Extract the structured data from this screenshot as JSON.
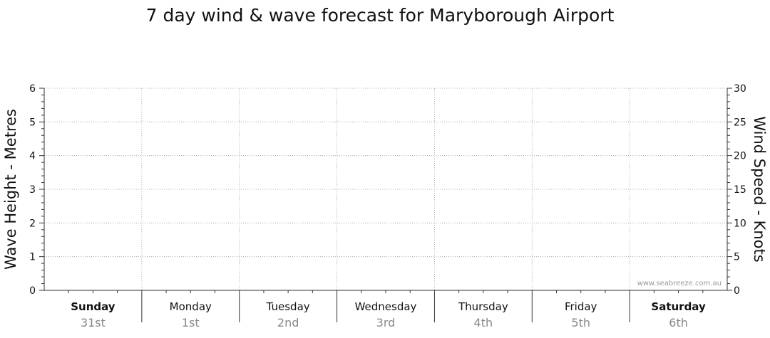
{
  "chart_data": {
    "type": "line",
    "title": "7 day wind & wave forecast for Maryborough Airport",
    "ylabel_left": "Wave Height - Metres",
    "ylabel_right": "Wind Speed - Knots",
    "ylim_left": [
      0,
      6
    ],
    "ylim_right": [
      0,
      30
    ],
    "yticks_left": [
      "0",
      "1",
      "2",
      "3",
      "4",
      "5",
      "6"
    ],
    "yticks_right": [
      "0",
      "5",
      "10",
      "15",
      "20",
      "25",
      "30"
    ],
    "days": [
      {
        "day": "Sunday",
        "date": "31st",
        "bold": true
      },
      {
        "day": "Monday",
        "date": "1st",
        "bold": false
      },
      {
        "day": "Tuesday",
        "date": "2nd",
        "bold": false
      },
      {
        "day": "Wednesday",
        "date": "3rd",
        "bold": false
      },
      {
        "day": "Thursday",
        "date": "4th",
        "bold": false
      },
      {
        "day": "Friday",
        "date": "5th",
        "bold": false
      },
      {
        "day": "Saturday",
        "date": "6th",
        "bold": true
      }
    ],
    "series": [],
    "grid": true,
    "credit": "www.seabreeze.com.au"
  }
}
